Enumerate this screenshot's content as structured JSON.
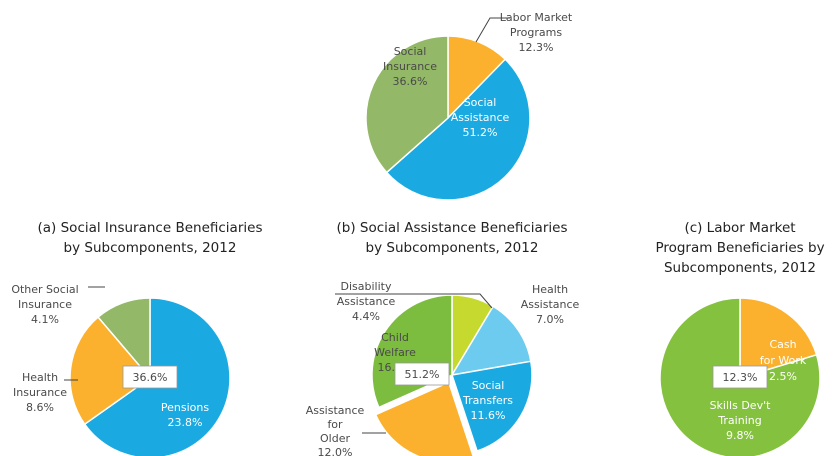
{
  "chart_data": [
    {
      "type": "pie",
      "categories": [
        "Labor Market Programs",
        "Social Assistance",
        "Social Insurance"
      ],
      "values": [
        12.3,
        51.2,
        36.6
      ],
      "value_labels": [
        "12.3%",
        "51.2%",
        "36.6%"
      ],
      "colors": [
        "#fbb12e",
        "#1aa9e1",
        "#93b867"
      ]
    },
    {
      "type": "pie",
      "title": "(a) Social Insurance Beneficiaries by Subcomponents, 2012",
      "categories": [
        "Pensions",
        "Health Insurance",
        "Other Social Insurance"
      ],
      "values": [
        23.8,
        8.6,
        4.1
      ],
      "value_labels": [
        "23.8%",
        "8.6%",
        "4.1%"
      ],
      "colors": [
        "#1aa9e1",
        "#fbb12e",
        "#93b867"
      ],
      "total_label": "36.6%"
    },
    {
      "type": "pie",
      "title": "(b) Social Assistance Beneficiaries by Subcomponents, 2012",
      "categories": [
        "Disability Assistance",
        "Health Assistance",
        "Social Transfers",
        "Assistance for Older Persons",
        "Child Welfare"
      ],
      "values": [
        4.4,
        7.0,
        11.6,
        12.0,
        16.2
      ],
      "value_labels": [
        "4.4%",
        "7.0%",
        "11.6%",
        "12.0%",
        "16.2%"
      ],
      "colors": [
        "#c5d92f",
        "#6ccbee",
        "#1aa9e1",
        "#fbb12e",
        "#7cbc3f"
      ],
      "explode": [
        0,
        0,
        0,
        1,
        0
      ],
      "total_label": "51.2%"
    },
    {
      "type": "pie",
      "title": "(c) Labor Market Program Beneficiaries by Subcomponents, 2012",
      "categories": [
        "Cash for Work",
        "Skills Dev't Training"
      ],
      "values": [
        2.5,
        9.8
      ],
      "value_labels": [
        "2.5%",
        "9.8%"
      ],
      "colors": [
        "#fbb12e",
        "#84c13f"
      ],
      "total_label": "12.3%"
    }
  ]
}
